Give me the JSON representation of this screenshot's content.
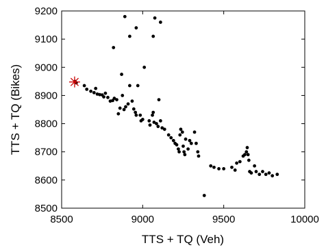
{
  "chart_data": {
    "type": "scatter",
    "title": "",
    "xlabel": "TTS + TQ (Veh)",
    "ylabel": "TTS + TQ (Bikes)",
    "xlim": [
      8500,
      10000
    ],
    "ylim": [
      8500,
      9200
    ],
    "xticks": [
      8500,
      9000,
      9500,
      10000
    ],
    "yticks": [
      8500,
      8600,
      8700,
      8800,
      8900,
      9000,
      9100,
      9200
    ],
    "xtick_labels": [
      "8500",
      "9000",
      "9500",
      "10000"
    ],
    "ytick_labels": [
      "8500",
      "8600",
      "8700",
      "8800",
      "8900",
      "9000",
      "9100",
      "9200"
    ],
    "box": true,
    "grid": false,
    "point_color": "#000000",
    "highlight_color": "#cc0000",
    "highlight": {
      "x": 8580,
      "y": 8948
    },
    "series": [
      {
        "values": [
          {
            "x": 8590,
            "y": 8945
          },
          {
            "x": 8582,
            "y": 8950
          },
          {
            "x": 8640,
            "y": 8935
          },
          {
            "x": 8655,
            "y": 8922
          },
          {
            "x": 8680,
            "y": 8915
          },
          {
            "x": 8700,
            "y": 8910
          },
          {
            "x": 8710,
            "y": 8925
          },
          {
            "x": 8720,
            "y": 8905
          },
          {
            "x": 8735,
            "y": 8903
          },
          {
            "x": 8750,
            "y": 8902
          },
          {
            "x": 8760,
            "y": 8895
          },
          {
            "x": 8770,
            "y": 8908
          },
          {
            "x": 8785,
            "y": 8893
          },
          {
            "x": 8800,
            "y": 8880
          },
          {
            "x": 8815,
            "y": 8882
          },
          {
            "x": 8825,
            "y": 8890
          },
          {
            "x": 8840,
            "y": 8885
          },
          {
            "x": 8850,
            "y": 8835
          },
          {
            "x": 8860,
            "y": 8855
          },
          {
            "x": 8875,
            "y": 8900
          },
          {
            "x": 8885,
            "y": 8850
          },
          {
            "x": 8895,
            "y": 8860
          },
          {
            "x": 8910,
            "y": 8870
          },
          {
            "x": 8920,
            "y": 8935
          },
          {
            "x": 8935,
            "y": 8880
          },
          {
            "x": 8945,
            "y": 8852
          },
          {
            "x": 8955,
            "y": 8840
          },
          {
            "x": 8960,
            "y": 8830
          },
          {
            "x": 8970,
            "y": 8935
          },
          {
            "x": 8985,
            "y": 8830
          },
          {
            "x": 8990,
            "y": 8810
          },
          {
            "x": 9000,
            "y": 8815
          },
          {
            "x": 9040,
            "y": 8810
          },
          {
            "x": 9045,
            "y": 8795
          },
          {
            "x": 9060,
            "y": 8830
          },
          {
            "x": 9065,
            "y": 8840
          },
          {
            "x": 9070,
            "y": 8805
          },
          {
            "x": 9085,
            "y": 8800
          },
          {
            "x": 9095,
            "y": 8790
          },
          {
            "x": 9100,
            "y": 8885
          },
          {
            "x": 9110,
            "y": 8810
          },
          {
            "x": 9120,
            "y": 8785
          },
          {
            "x": 9135,
            "y": 8780
          },
          {
            "x": 9160,
            "y": 8760
          },
          {
            "x": 9175,
            "y": 8750
          },
          {
            "x": 9190,
            "y": 8740
          },
          {
            "x": 9200,
            "y": 8730
          },
          {
            "x": 9210,
            "y": 8725
          },
          {
            "x": 9220,
            "y": 8710
          },
          {
            "x": 9225,
            "y": 8700
          },
          {
            "x": 9230,
            "y": 8760
          },
          {
            "x": 9235,
            "y": 8780
          },
          {
            "x": 9245,
            "y": 8770
          },
          {
            "x": 9250,
            "y": 8720
          },
          {
            "x": 9255,
            "y": 8700
          },
          {
            "x": 9260,
            "y": 8690
          },
          {
            "x": 9265,
            "y": 8745
          },
          {
            "x": 9280,
            "y": 8710
          },
          {
            "x": 9290,
            "y": 8740
          },
          {
            "x": 9300,
            "y": 8730
          },
          {
            "x": 9320,
            "y": 8770
          },
          {
            "x": 9330,
            "y": 8730
          },
          {
            "x": 9340,
            "y": 8700
          },
          {
            "x": 9345,
            "y": 8685
          },
          {
            "x": 9380,
            "y": 8545
          },
          {
            "x": 9420,
            "y": 8650
          },
          {
            "x": 9440,
            "y": 8645
          },
          {
            "x": 9470,
            "y": 8640
          },
          {
            "x": 9500,
            "y": 8640
          },
          {
            "x": 9550,
            "y": 8645
          },
          {
            "x": 9570,
            "y": 8635
          },
          {
            "x": 9580,
            "y": 8660
          },
          {
            "x": 9600,
            "y": 8665
          },
          {
            "x": 9620,
            "y": 8685
          },
          {
            "x": 9630,
            "y": 8690
          },
          {
            "x": 9640,
            "y": 8700
          },
          {
            "x": 9645,
            "y": 8715
          },
          {
            "x": 9650,
            "y": 8690
          },
          {
            "x": 9655,
            "y": 8670
          },
          {
            "x": 9660,
            "y": 8630
          },
          {
            "x": 9670,
            "y": 8625
          },
          {
            "x": 9690,
            "y": 8650
          },
          {
            "x": 9700,
            "y": 8630
          },
          {
            "x": 9720,
            "y": 8620
          },
          {
            "x": 9740,
            "y": 8630
          },
          {
            "x": 9760,
            "y": 8620
          },
          {
            "x": 9780,
            "y": 8625
          },
          {
            "x": 9800,
            "y": 8615
          },
          {
            "x": 9830,
            "y": 8620
          },
          {
            "x": 8820,
            "y": 9070
          },
          {
            "x": 8870,
            "y": 8975
          },
          {
            "x": 8890,
            "y": 9180
          },
          {
            "x": 8920,
            "y": 9110
          },
          {
            "x": 8960,
            "y": 9140
          },
          {
            "x": 9010,
            "y": 9000
          },
          {
            "x": 9065,
            "y": 9110
          },
          {
            "x": 9075,
            "y": 9175
          },
          {
            "x": 9110,
            "y": 9160
          }
        ]
      }
    ]
  }
}
